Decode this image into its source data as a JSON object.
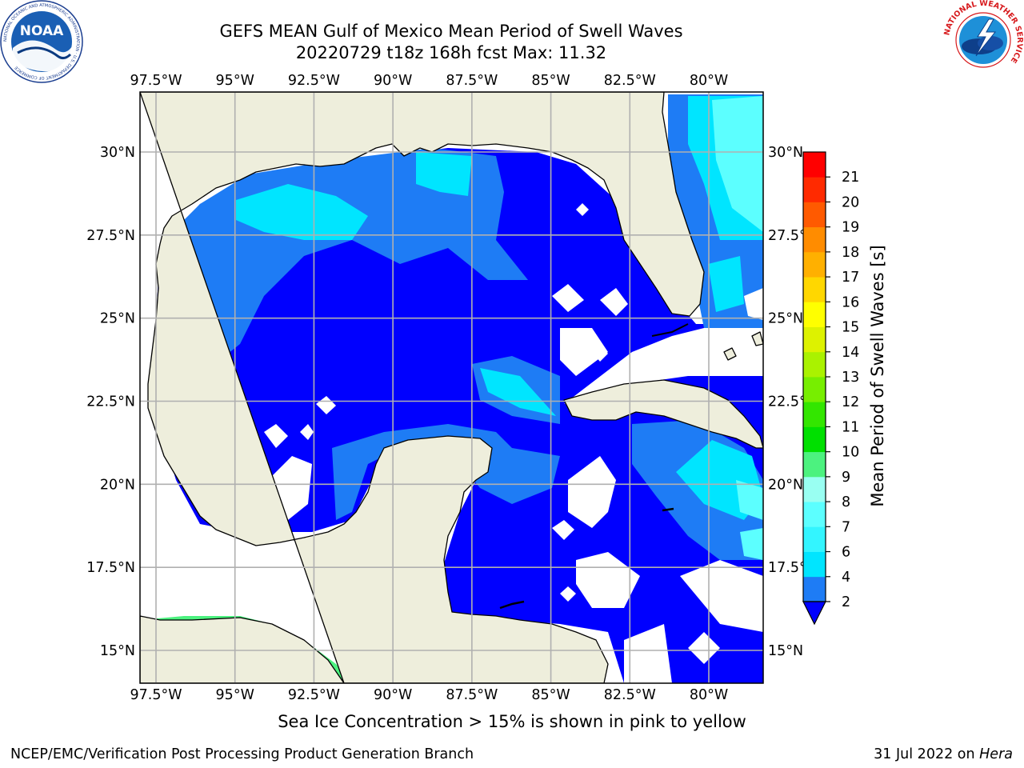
{
  "header": {
    "title_line1": "GEFS MEAN Gulf of Mexico Mean Period of Swell Waves",
    "title_line2": "20220729 t18z 168h fcst   Max: 11.32"
  },
  "logos": {
    "noaa_text": "NOAA",
    "noaa_ring_text": "NATIONAL OCEANIC AND ATMOSPHERIC ADMINISTRATION · U.S. DEPARTMENT OF COMMERCE",
    "nws_ring_text": "NATIONAL WEATHER SERVICE"
  },
  "chart_data": {
    "type": "heatmap",
    "title": "GEFS MEAN Gulf of Mexico Mean Period of Swell Waves",
    "subtitle": "20220729 t18z 168h fcst   Max: 11.32",
    "variable": "Mean Period of Swell Waves [s]",
    "max_value": 11.32,
    "lon_range": [
      -98.5,
      -78.5
    ],
    "lat_range": [
      14.0,
      32.0
    ],
    "lon_ticks": [
      "97.5°W",
      "95°W",
      "92.5°W",
      "90°W",
      "87.5°W",
      "85°W",
      "82.5°W",
      "80°W"
    ],
    "lon_tick_values": [
      -97.5,
      -95,
      -92.5,
      -90,
      -87.5,
      -85,
      -82.5,
      -80
    ],
    "lat_ticks": [
      "15°N",
      "17.5°N",
      "20°N",
      "22.5°N",
      "25°N",
      "27.5°N",
      "30°N"
    ],
    "lat_tick_values": [
      15,
      17.5,
      20,
      22.5,
      25,
      27.5,
      30
    ],
    "grid": true,
    "colorbar": {
      "label": "Mean Period of Swell Waves [s]",
      "ticks": [
        "2",
        "4",
        "6",
        "7",
        "8",
        "9",
        "10",
        "11",
        "12",
        "13",
        "14",
        "15",
        "16",
        "17",
        "18",
        "19",
        "20",
        "21"
      ],
      "bins": [
        {
          "from": 2,
          "to": 4,
          "color": "#1e7cf5"
        },
        {
          "from": 4,
          "to": 6,
          "color": "#00e5ff"
        },
        {
          "from": 6,
          "to": 7,
          "color": "#33f5ff"
        },
        {
          "from": 7,
          "to": 8,
          "color": "#5cffff"
        },
        {
          "from": 8,
          "to": 9,
          "color": "#99fff2"
        },
        {
          "from": 9,
          "to": 10,
          "color": "#4cf27f"
        },
        {
          "from": 10,
          "to": 11,
          "color": "#00e000"
        },
        {
          "from": 11,
          "to": 12,
          "color": "#33e600"
        },
        {
          "from": 12,
          "to": 13,
          "color": "#77ee00"
        },
        {
          "from": 13,
          "to": 14,
          "color": "#aaf200"
        },
        {
          "from": 14,
          "to": 15,
          "color": "#ddf200"
        },
        {
          "from": 15,
          "to": 16,
          "color": "#ffff00"
        },
        {
          "from": 16,
          "to": 17,
          "color": "#ffd700"
        },
        {
          "from": 17,
          "to": 18,
          "color": "#ffb000"
        },
        {
          "from": 18,
          "to": 19,
          "color": "#ff8c00"
        },
        {
          "from": 19,
          "to": 20,
          "color": "#ff5a00"
        },
        {
          "from": 20,
          "to": 21,
          "color": "#ff2a00"
        },
        {
          "from": 21,
          "to": 22,
          "color": "#ff0000"
        }
      ],
      "under_color": "#0000ff"
    },
    "colors": {
      "land": "#eeeedc",
      "below_2": "#0000ff",
      "2_to_4": "#1e7cf5",
      "4_to_6": "#00e5ff",
      "6_to_8": "#5cffff",
      "8_to_9": "#99fff2",
      "9_to_10": "#4cf27f",
      "10_to_11": "#00e000",
      "no_data": "#ffffff",
      "grid": "#b0b0b0"
    }
  },
  "subtitle": "Sea Ice Concentration > 15% is shown in pink to yellow",
  "footer": {
    "left": "NCEP/EMC/Verification Post Processing Product Generation Branch",
    "right_prefix": "31 Jul 2022 on ",
    "right_host": "Hera"
  }
}
